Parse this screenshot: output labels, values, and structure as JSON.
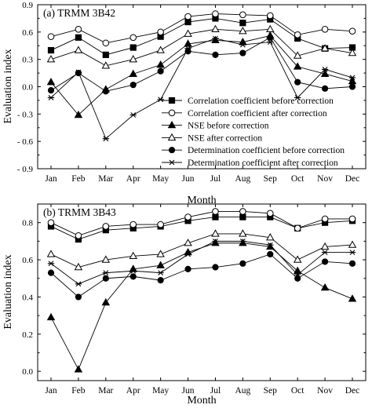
{
  "chart_data": [
    {
      "type": "line",
      "panel_label": "(a) TRMM 3B42",
      "title": "",
      "xlabel": "Month",
      "ylabel": "Evaluation index",
      "categories": [
        "Jan",
        "Feb",
        "Mar",
        "Apr",
        "May",
        "Jun",
        "Jul",
        "Aug",
        "Sep",
        "Oct",
        "Nov",
        "Dec"
      ],
      "ylim": [
        -0.9,
        0.9
      ],
      "yticks": [
        -0.9,
        -0.6,
        -0.3,
        0.0,
        0.3,
        0.6,
        0.9
      ],
      "ytick_labels": [
        "- 0.9",
        "- 0.6",
        "- 0.3",
        "0.0",
        "0.3",
        "0.6",
        "0.9"
      ],
      "legend_position": "bottom-right",
      "series": [
        {
          "name": "Correlation coefficient before correction",
          "marker": "square-filled",
          "values": [
            0.4,
            0.54,
            0.35,
            0.43,
            0.55,
            0.71,
            0.75,
            0.7,
            0.74,
            0.53,
            0.42,
            0.43
          ]
        },
        {
          "name": "Correlation coefficient after correction",
          "marker": "circle-open",
          "values": [
            0.55,
            0.63,
            0.48,
            0.54,
            0.6,
            0.77,
            0.8,
            0.79,
            0.78,
            0.57,
            0.63,
            0.61
          ]
        },
        {
          "name": "NSE before correction",
          "marker": "triangle-filled",
          "values": [
            0.05,
            -0.31,
            -0.03,
            0.14,
            0.24,
            0.47,
            0.51,
            0.49,
            0.56,
            0.22,
            0.14,
            0.06
          ]
        },
        {
          "name": "NSE after correction",
          "marker": "triangle-open",
          "values": [
            0.3,
            0.4,
            0.23,
            0.3,
            0.4,
            0.58,
            0.63,
            0.61,
            0.63,
            0.34,
            0.42,
            0.37
          ]
        },
        {
          "name": "Determination coefficient before correction",
          "marker": "circle-filled",
          "values": [
            -0.04,
            0.15,
            -0.05,
            0.02,
            0.17,
            0.39,
            0.35,
            0.37,
            0.54,
            0.05,
            -0.02,
            0.0
          ]
        },
        {
          "name": "Determination coefficient after correction",
          "marker": "asterisk",
          "values": [
            -0.12,
            0.16,
            -0.57,
            -0.31,
            -0.14,
            0.42,
            0.53,
            0.46,
            0.49,
            -0.12,
            0.19,
            0.1
          ]
        }
      ]
    },
    {
      "type": "line",
      "panel_label": "(b) TRMM 3B43",
      "title": "",
      "xlabel": "Month",
      "ylabel": "Evaluation index",
      "categories": [
        "Jan",
        "Feb",
        "Mar",
        "Apr",
        "May",
        "Jun",
        "Jul",
        "Aug",
        "Sep",
        "Oct",
        "Nov",
        "Dec"
      ],
      "ylim": [
        -0.05,
        0.9
      ],
      "yticks": [
        0.0,
        0.2,
        0.4,
        0.6,
        0.8
      ],
      "ytick_labels": [
        "0.0",
        "0.2",
        "0.4",
        "0.6",
        "0.8"
      ],
      "series": [
        {
          "name": "Correlation coefficient before correction",
          "marker": "square-filled",
          "values": [
            0.78,
            0.71,
            0.76,
            0.77,
            0.78,
            0.81,
            0.83,
            0.83,
            0.83,
            0.77,
            0.8,
            0.81
          ]
        },
        {
          "name": "Correlation coefficient after correction",
          "marker": "circle-open",
          "values": [
            0.8,
            0.73,
            0.78,
            0.79,
            0.79,
            0.83,
            0.86,
            0.86,
            0.85,
            0.77,
            0.82,
            0.82
          ]
        },
        {
          "name": "NSE before correction",
          "marker": "triangle-filled",
          "values": [
            0.29,
            0.01,
            0.37,
            0.55,
            0.57,
            0.64,
            0.69,
            0.69,
            0.67,
            0.54,
            0.45,
            0.39
          ]
        },
        {
          "name": "NSE after correction",
          "marker": "triangle-open",
          "values": [
            0.63,
            0.56,
            0.6,
            0.62,
            0.63,
            0.69,
            0.74,
            0.74,
            0.72,
            0.6,
            0.67,
            0.68
          ]
        },
        {
          "name": "Determination coefficient before correction",
          "marker": "circle-filled",
          "values": [
            0.53,
            0.4,
            0.5,
            0.51,
            0.49,
            0.55,
            0.56,
            0.58,
            0.63,
            0.5,
            0.59,
            0.58
          ]
        },
        {
          "name": "Determination coefficient after correction",
          "marker": "asterisk",
          "values": [
            0.58,
            0.47,
            0.53,
            0.54,
            0.53,
            0.63,
            0.7,
            0.7,
            0.68,
            0.52,
            0.64,
            0.64
          ]
        }
      ]
    }
  ]
}
